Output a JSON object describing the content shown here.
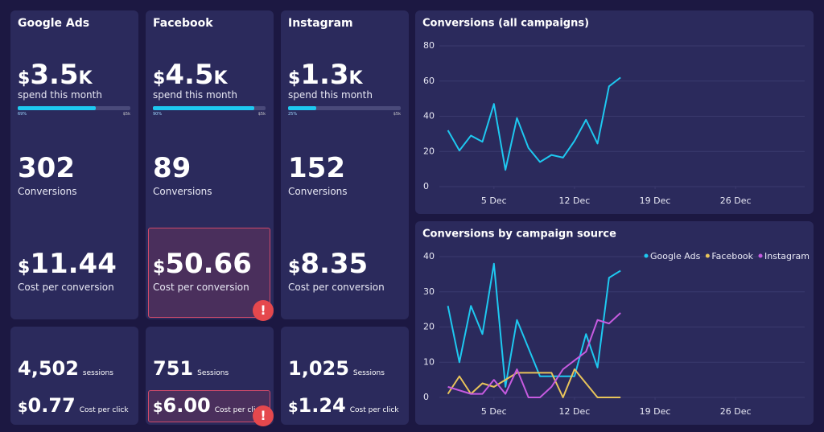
{
  "labels": {
    "currency": "$",
    "spend": "spend this month",
    "conversions": "Conversions",
    "cost_per_conversion": "Cost per conversion",
    "cost_per_click": "Cost per click"
  },
  "cards": [
    {
      "name": "Google Ads",
      "spend": {
        "value": "3.5",
        "unit": "K"
      },
      "budget": {
        "value": 69,
        "label": "69%",
        "limit": "$5k"
      },
      "conversions": "302",
      "cost_per_conversion": {
        "value": "11.44",
        "alert": false
      },
      "sessions": {
        "value": "4,502",
        "label": "sessions"
      },
      "cost_per_click": {
        "value": "0.77",
        "alert": false
      }
    },
    {
      "name": "Facebook",
      "spend": {
        "value": "4.5",
        "unit": "K"
      },
      "budget": {
        "value": 90,
        "label": "90%",
        "limit": "$5k"
      },
      "conversions": "89",
      "cost_per_conversion": {
        "value": "50.66",
        "alert": true
      },
      "sessions": {
        "value": "751",
        "label": "Sessions"
      },
      "cost_per_click": {
        "value": "6.00",
        "alert": true
      }
    },
    {
      "name": "Instagram",
      "spend": {
        "value": "1.3",
        "unit": "K"
      },
      "budget": {
        "value": 25,
        "label": "25%",
        "limit": "$5k"
      },
      "conversions": "152",
      "cost_per_conversion": {
        "value": "8.35",
        "alert": false
      },
      "sessions": {
        "value": "1,025",
        "label": "Sessions"
      },
      "cost_per_click": {
        "value": "1.24",
        "alert": false
      }
    }
  ],
  "chart_data": [
    {
      "type": "line",
      "title": "Conversions (all campaigns)",
      "x": [
        1,
        2,
        3,
        4,
        5,
        6,
        7,
        8,
        9,
        10,
        11,
        12,
        13,
        14,
        15,
        16
      ],
      "values": [
        32,
        20.5,
        29,
        25.5,
        47,
        9.5,
        39,
        22,
        14,
        18,
        16.5,
        26,
        38,
        24.5,
        57,
        62
      ],
      "color": "#1ec8f0",
      "xlim": [
        -1,
        32
      ],
      "xticks": [
        {
          "value": 5,
          "label": "5 Dec"
        },
        {
          "value": 12,
          "label": "12 Dec"
        },
        {
          "value": 19,
          "label": "19 Dec"
        },
        {
          "value": 26,
          "label": "26 Dec"
        }
      ],
      "ylim": [
        0,
        80
      ],
      "yticks": [
        0,
        20,
        40,
        60,
        80
      ],
      "grid": true
    },
    {
      "type": "line",
      "title": "Conversions by campaign source",
      "x": [
        1,
        2,
        3,
        4,
        5,
        6,
        7,
        8,
        9,
        10,
        11,
        12,
        13,
        14,
        15,
        16
      ],
      "series": [
        {
          "name": "Google Ads",
          "color": "#1ec8f0",
          "values": [
            26,
            10,
            26,
            18,
            38,
            3,
            22,
            14,
            6,
            6,
            6,
            6,
            18,
            8.5,
            34,
            36
          ]
        },
        {
          "name": "Facebook",
          "color": "#e8c45a",
          "values": [
            1,
            6,
            1,
            4,
            3,
            5,
            7,
            7,
            7,
            7,
            0,
            8,
            4,
            0,
            0,
            0
          ]
        },
        {
          "name": "Instagram",
          "color": "#c65be0",
          "values": [
            3,
            2,
            1,
            1,
            5,
            1,
            8,
            0,
            0,
            3,
            8,
            10.5,
            13,
            22,
            21,
            24
          ]
        }
      ],
      "xlim": [
        -1,
        32
      ],
      "xticks": [
        {
          "value": 5,
          "label": "5 Dec"
        },
        {
          "value": 12,
          "label": "12 Dec"
        },
        {
          "value": 19,
          "label": "19 Dec"
        },
        {
          "value": 26,
          "label": "26 Dec"
        }
      ],
      "ylim": [
        0,
        40
      ],
      "yticks": [
        0,
        10,
        20,
        30,
        40
      ],
      "grid": true,
      "legend": "top-right"
    }
  ]
}
